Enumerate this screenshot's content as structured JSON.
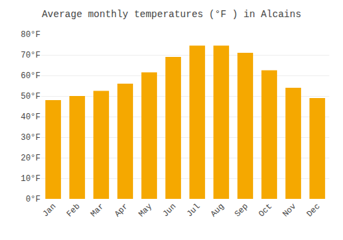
{
  "chart_data": {
    "type": "bar",
    "title": "Average monthly temperatures (°F ) in Alcains",
    "categories": [
      "Jan",
      "Feb",
      "Mar",
      "Apr",
      "May",
      "Jun",
      "Jul",
      "Aug",
      "Sep",
      "Oct",
      "Nov",
      "Dec"
    ],
    "values": [
      48,
      50,
      52.5,
      56,
      61.5,
      69,
      74.5,
      74.5,
      71,
      62.5,
      54,
      49
    ],
    "color": "#F5A800",
    "ylim": [
      0,
      80
    ],
    "yticks": [
      {
        "value": 0,
        "label": "0°F"
      },
      {
        "value": 10,
        "label": "10°F"
      },
      {
        "value": 20,
        "label": "20°F"
      },
      {
        "value": 30,
        "label": "30°F"
      },
      {
        "value": 40,
        "label": "40°F"
      },
      {
        "value": 50,
        "label": "50°F"
      },
      {
        "value": 60,
        "label": "60°F"
      },
      {
        "value": 70,
        "label": "70°F"
      },
      {
        "value": 80,
        "label": "80°F"
      }
    ],
    "grid": true
  }
}
